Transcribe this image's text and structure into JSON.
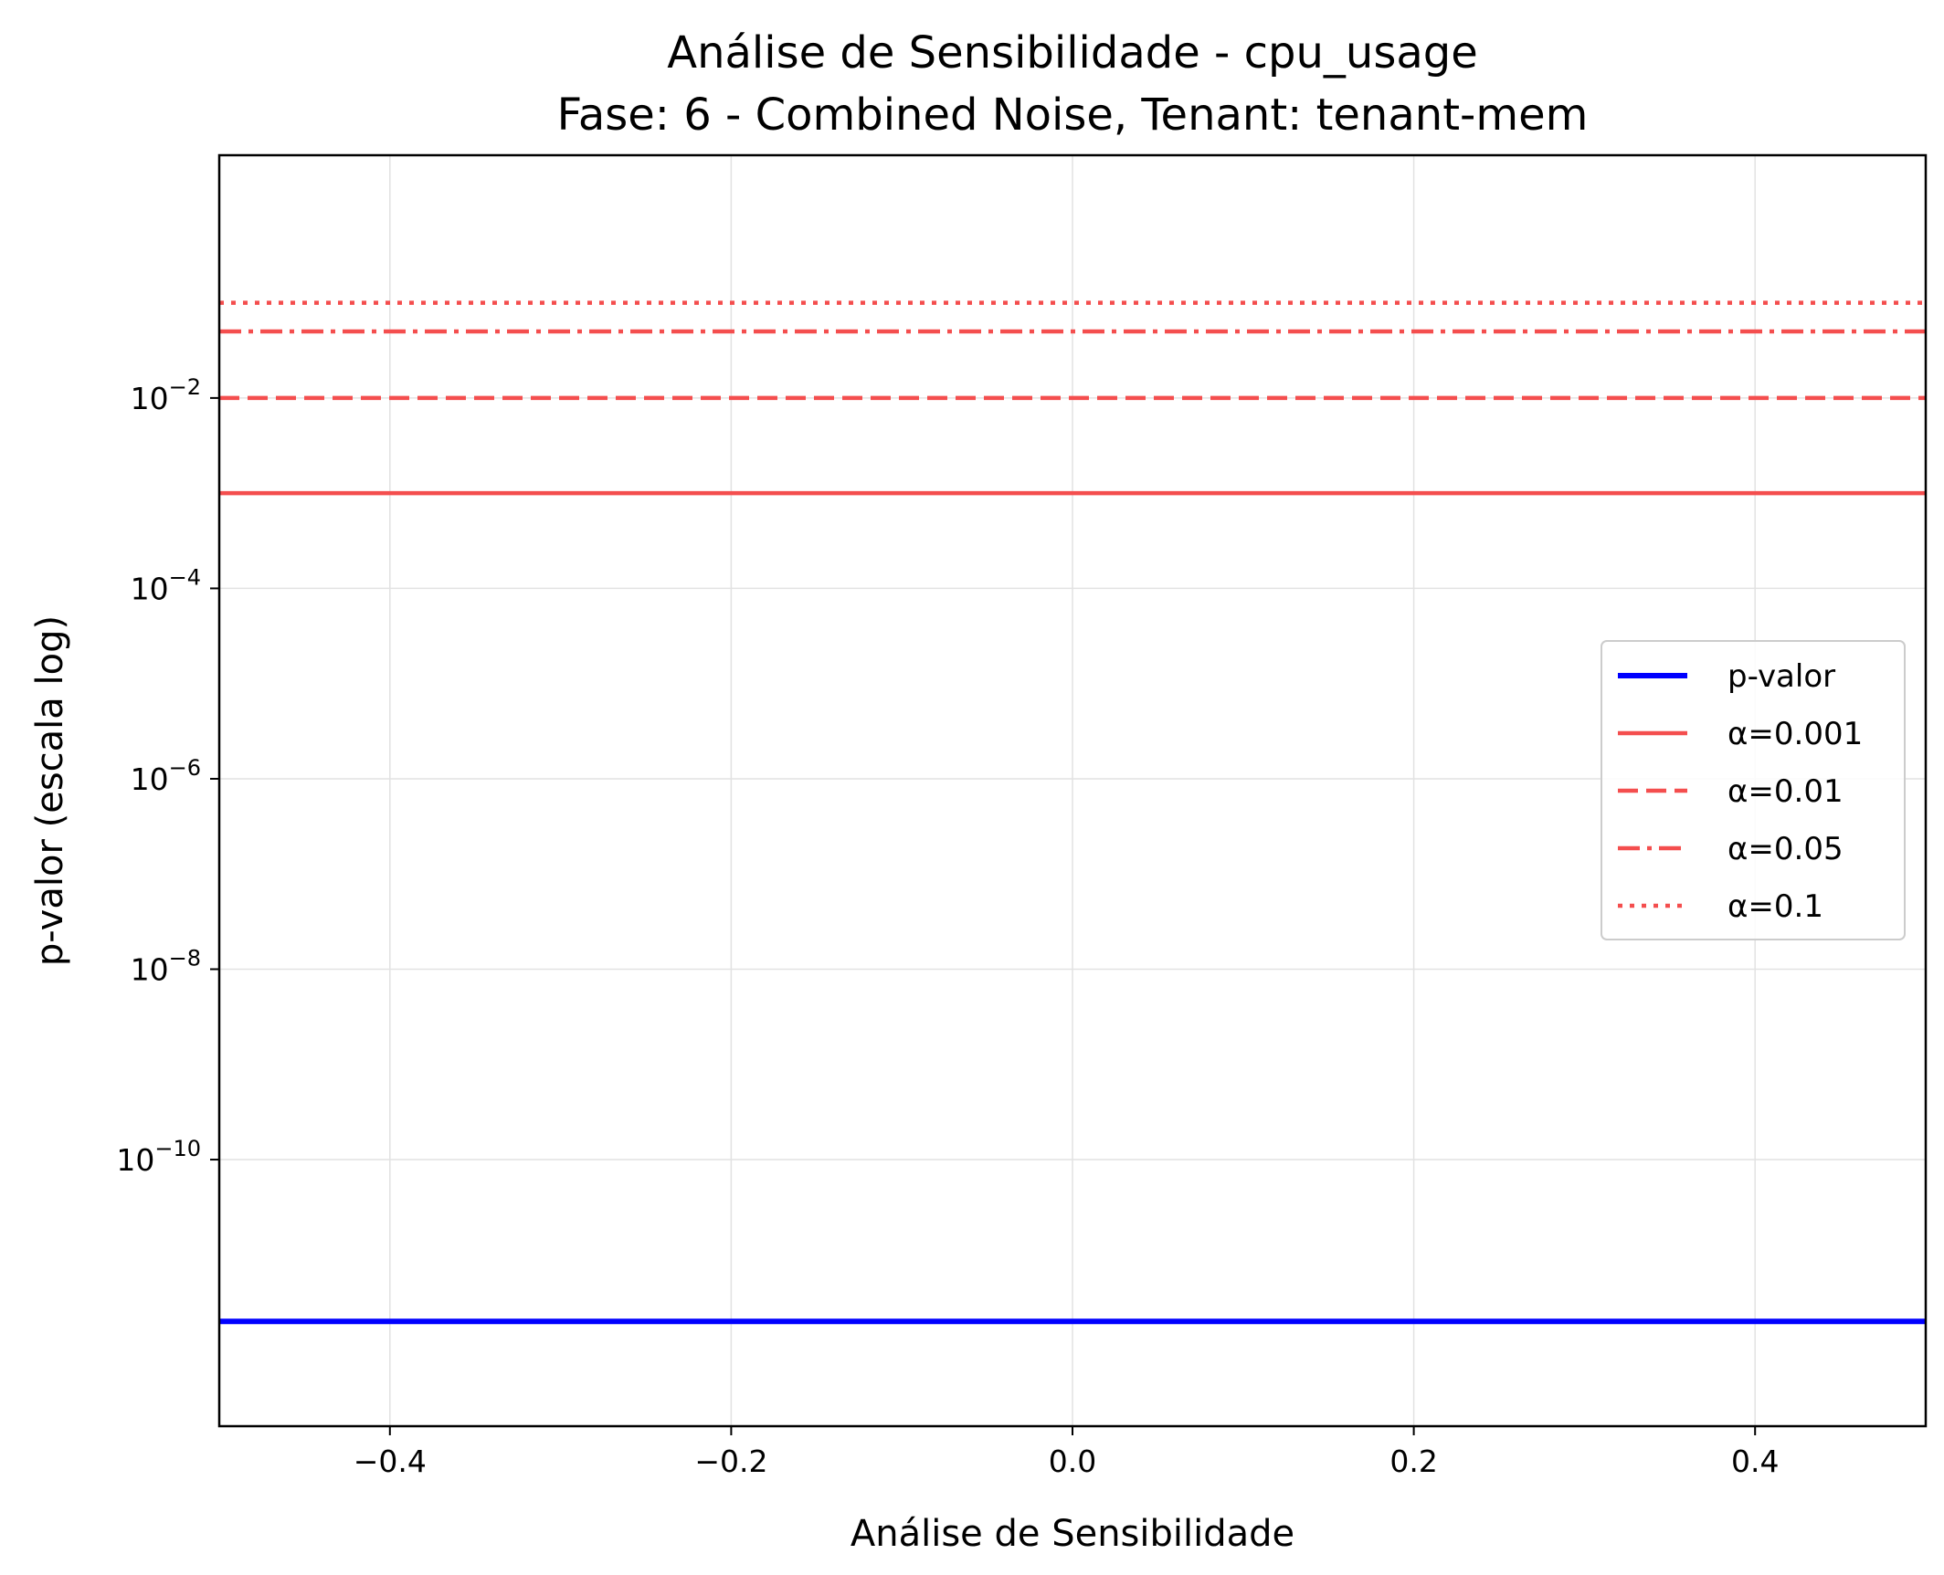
{
  "chart_data": {
    "type": "line",
    "title": "Análise de Sensibilidade - cpu_usage",
    "subtitle": "Fase: 6 - Combined Noise, Tenant: tenant-mem",
    "xlabel": "Análise de Sensibilidade",
    "ylabel": "p-valor (escala log)",
    "xlim": [
      -0.5,
      0.5
    ],
    "ylim_log10": [
      -12.8,
      0.55
    ],
    "yscale": "log",
    "grid": true,
    "legend_position": "center-right",
    "x_ticks": [
      -0.4,
      -0.2,
      0.0,
      0.2,
      0.4
    ],
    "x_tick_labels": [
      "−0.4",
      "−0.2",
      "0.0",
      "0.2",
      "0.4"
    ],
    "y_ticks_log10": [
      -10,
      -8,
      -6,
      -4,
      -2
    ],
    "y_tick_labels": [
      {
        "base": "10",
        "exp": "−10"
      },
      {
        "base": "10",
        "exp": "−8"
      },
      {
        "base": "10",
        "exp": "−6"
      },
      {
        "base": "10",
        "exp": "−4"
      },
      {
        "base": "10",
        "exp": "−2"
      }
    ],
    "series": [
      {
        "name": "p-valor",
        "x": [
          -0.5,
          0.5
        ],
        "y": [
          2e-12,
          2e-12
        ],
        "color": "#0000ff",
        "dash": "solid"
      },
      {
        "name": "α=0.001",
        "x": [
          -0.5,
          0.5
        ],
        "y": [
          0.001,
          0.001
        ],
        "color": "#f44e4e",
        "dash": "solid"
      },
      {
        "name": "α=0.01",
        "x": [
          -0.5,
          0.5
        ],
        "y": [
          0.01,
          0.01
        ],
        "color": "#f44e4e",
        "dash": "dashed"
      },
      {
        "name": "α=0.05",
        "x": [
          -0.5,
          0.5
        ],
        "y": [
          0.05,
          0.05
        ],
        "color": "#f44e4e",
        "dash": "dashdot"
      },
      {
        "name": "α=0.1",
        "x": [
          -0.5,
          0.5
        ],
        "y": [
          0.1,
          0.1
        ],
        "color": "#f44e4e",
        "dash": "dotted"
      }
    ]
  }
}
